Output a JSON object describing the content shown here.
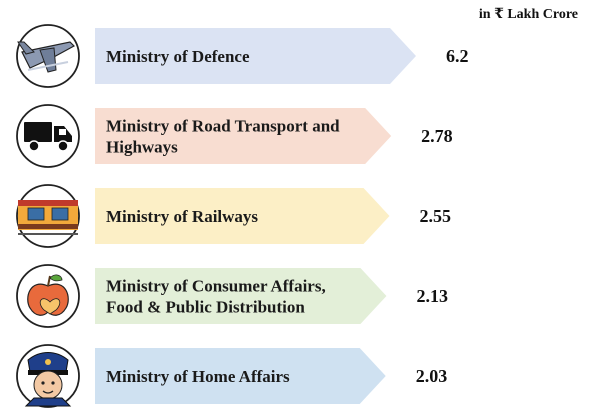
{
  "unit_label": "in ₹ Lakh Crore",
  "chart_data": {
    "type": "bar",
    "orientation": "horizontal",
    "unit": "₹ Lakh Crore",
    "categories": [
      "Ministry of Defence",
      "Ministry of Road Transport and Highways",
      "Ministry of Railways",
      "Ministry of Consumer Affairs, Food & Public Distribution",
      "Ministry of Home Affairs"
    ],
    "label_lines": [
      [
        "Ministry of Defence"
      ],
      [
        "Ministry of Road Transport and",
        "Highways"
      ],
      [
        "Ministry of Railways"
      ],
      [
        "Ministry of Consumer Affairs,",
        "Food & Public Distribution"
      ],
      [
        "Ministry of Home Affairs"
      ]
    ],
    "values": [
      6.2,
      2.78,
      2.55,
      2.13,
      2.03
    ],
    "value_labels": [
      "6.2",
      "2.78",
      "2.55",
      "2.13",
      "2.03"
    ],
    "icons": [
      "aircraft-icon",
      "truck-icon",
      "train-icon",
      "apple-icon",
      "police-officer-icon"
    ],
    "colors": [
      "#dbe3f3",
      "#f8ddd1",
      "#fcefc6",
      "#e3efd8",
      "#cfe1f1"
    ],
    "outline_color": "#333333",
    "legend": "none",
    "grid": false
  }
}
